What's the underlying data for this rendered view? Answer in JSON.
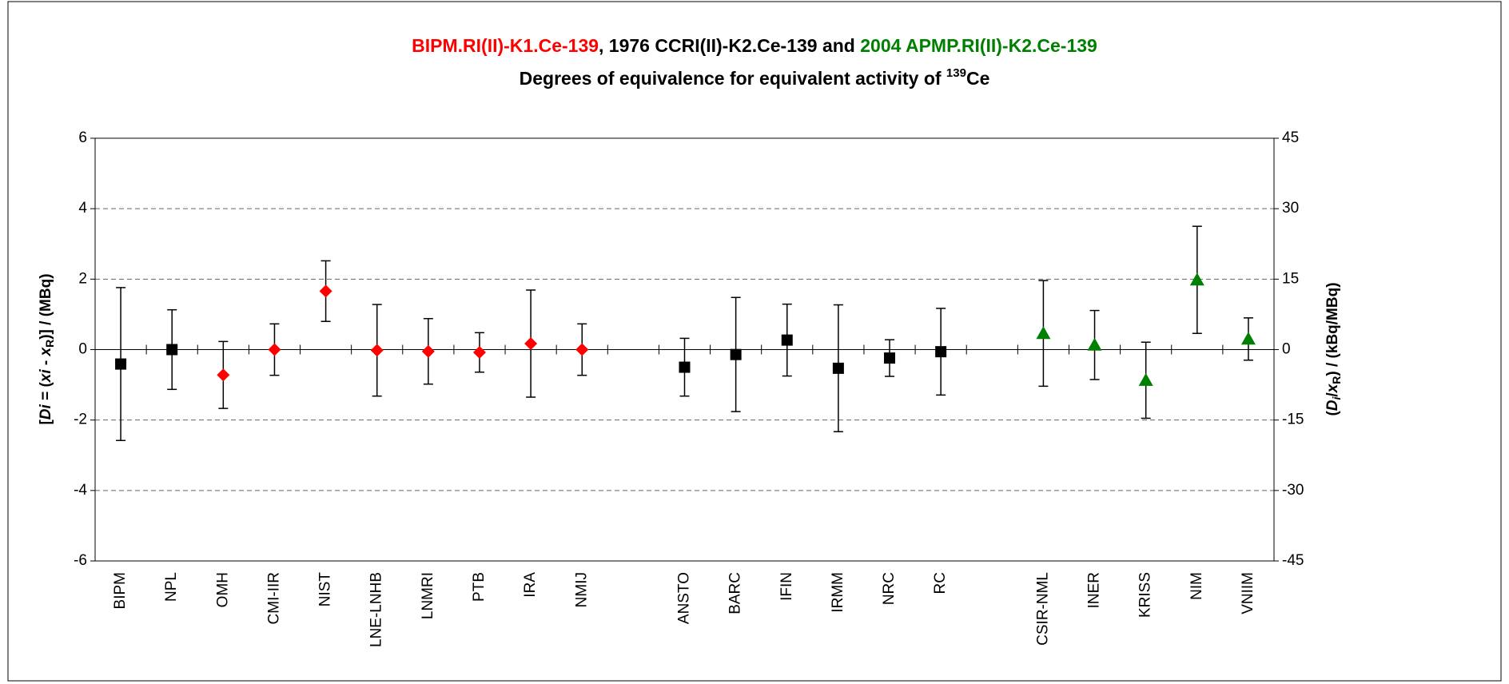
{
  "chart_data": {
    "type": "errorbar",
    "title_parts": [
      {
        "text": "BIPM.RI(II)-K1.Ce-139",
        "color": "#ff0000"
      },
      {
        "text": ", 1976 CCRI(II)-K2.Ce-139 and ",
        "color": "#000000"
      },
      {
        "text": "2004 APMP.RI(II)-K2.Ce-139",
        "color": "#008000"
      }
    ],
    "subtitle_parts": [
      "Degrees of equivalence for equivalent activity of ",
      "139",
      "Ce"
    ],
    "ylabel_parts": [
      "[",
      "Di",
      " = (",
      "xi",
      " - ",
      "x",
      "R",
      ")] / (MBq)"
    ],
    "y2label_parts": [
      "(",
      "D",
      "i",
      "/",
      "x",
      "R",
      ") / (kBq/MBq)"
    ],
    "categories": [
      "BIPM",
      "NPL",
      "OMH",
      "CMI-IIR",
      "NIST",
      "LNE-LNHB",
      "LNMRI",
      "PTB",
      "IRA",
      "NMIJ",
      null,
      "ANSTO",
      "BARC",
      "IFIN",
      "IRMM",
      "NRC",
      "RC",
      null,
      "CSIR-NML",
      "INER",
      "KRISS",
      "NIM",
      "VNIIM"
    ],
    "series": [
      {
        "marker": "square",
        "color": "#000000",
        "values": [
          -0.41,
          0.0,
          null,
          null,
          null,
          null,
          null,
          null,
          null,
          null,
          null,
          -0.5,
          -0.14,
          0.27,
          -0.53,
          -0.24,
          -0.06,
          null,
          null,
          null,
          null,
          null,
          null
        ],
        "errors": [
          2.17,
          1.13,
          null,
          null,
          null,
          null,
          null,
          null,
          null,
          null,
          null,
          0.82,
          1.62,
          1.02,
          1.8,
          0.52,
          1.23,
          null,
          null,
          null,
          null,
          null,
          null
        ]
      },
      {
        "marker": "diamond",
        "color": "#ff0000",
        "values": [
          null,
          null,
          -0.72,
          0.0,
          1.66,
          -0.02,
          -0.05,
          -0.08,
          0.17,
          0.0,
          null,
          null,
          null,
          null,
          null,
          null,
          null,
          null,
          null,
          null,
          null,
          null,
          null
        ],
        "errors": [
          null,
          null,
          0.95,
          0.73,
          0.86,
          1.3,
          0.93,
          0.56,
          1.52,
          0.73,
          null,
          null,
          null,
          null,
          null,
          null,
          null,
          null,
          null,
          null,
          null,
          null,
          null
        ]
      },
      {
        "marker": "triangle",
        "color": "#008000",
        "values": [
          null,
          null,
          null,
          null,
          null,
          null,
          null,
          null,
          null,
          null,
          null,
          null,
          null,
          null,
          null,
          null,
          null,
          null,
          0.46,
          0.13,
          -0.87,
          1.98,
          0.3
        ],
        "errors": [
          null,
          null,
          null,
          null,
          null,
          null,
          null,
          null,
          null,
          null,
          null,
          null,
          null,
          null,
          null,
          null,
          null,
          null,
          1.5,
          0.98,
          1.08,
          1.52,
          0.6
        ]
      }
    ],
    "ylim": [
      -6,
      6
    ],
    "yticks": [
      -6,
      -4,
      -2,
      0,
      2,
      4,
      6
    ],
    "y2lim": [
      -45,
      45
    ],
    "y2ticks": [
      -45,
      -30,
      -15,
      0,
      15,
      30,
      45
    ],
    "grid": true
  }
}
